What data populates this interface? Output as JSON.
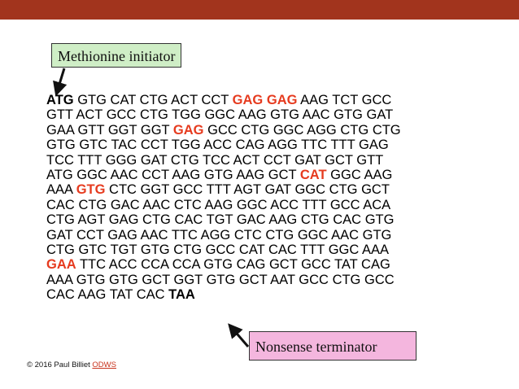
{
  "colors": {
    "header_bar": "#a2341d",
    "mutation": "#e63b1f",
    "start_callout": "#cfeec6",
    "stop_callout": "#f4b6de"
  },
  "callouts": {
    "start": "Methionine initiator",
    "stop": "Nonsense terminator"
  },
  "sequence": [
    [
      {
        "t": "ATG",
        "s": "bold"
      },
      {
        "t": "GTG"
      },
      {
        "t": "CAT"
      },
      {
        "t": "CTG"
      },
      {
        "t": "ACT"
      },
      {
        "t": "CCT"
      },
      {
        "t": "GAG",
        "s": "mut"
      },
      {
        "t": "GAG",
        "s": "mut"
      },
      {
        "t": "AAG"
      },
      {
        "t": "TCT"
      },
      {
        "t": "GCC"
      }
    ],
    [
      {
        "t": "GTT"
      },
      {
        "t": "ACT"
      },
      {
        "t": "GCC"
      },
      {
        "t": "CTG"
      },
      {
        "t": "TGG"
      },
      {
        "t": "GGC"
      },
      {
        "t": "AAG"
      },
      {
        "t": "GTG"
      },
      {
        "t": "AAC"
      },
      {
        "t": "GTG"
      },
      {
        "t": "GAT"
      }
    ],
    [
      {
        "t": "GAA"
      },
      {
        "t": "GTT"
      },
      {
        "t": "GGT"
      },
      {
        "t": "GGT"
      },
      {
        "t": "GAG",
        "s": "mut"
      },
      {
        "t": "GCC"
      },
      {
        "t": "CTG"
      },
      {
        "t": "GGC"
      },
      {
        "t": "AGG"
      },
      {
        "t": "CTG"
      },
      {
        "t": "CTG"
      }
    ],
    [
      {
        "t": "GTG"
      },
      {
        "t": "GTC"
      },
      {
        "t": "TAC"
      },
      {
        "t": "CCT"
      },
      {
        "t": "TGG"
      },
      {
        "t": "ACC"
      },
      {
        "t": "CAG"
      },
      {
        "t": "AGG"
      },
      {
        "t": "TTC"
      },
      {
        "t": "TTT"
      },
      {
        "t": "GAG"
      }
    ],
    [
      {
        "t": "TCC"
      },
      {
        "t": "TTT"
      },
      {
        "t": "GGG"
      },
      {
        "t": "GAT"
      },
      {
        "t": "CTG"
      },
      {
        "t": "TCC"
      },
      {
        "t": "ACT"
      },
      {
        "t": "CCT"
      },
      {
        "t": "GAT"
      },
      {
        "t": "GCT"
      },
      {
        "t": "GTT"
      }
    ],
    [
      {
        "t": "ATG"
      },
      {
        "t": "GGC"
      },
      {
        "t": "AAC"
      },
      {
        "t": "CCT"
      },
      {
        "t": "AAG"
      },
      {
        "t": "GTG"
      },
      {
        "t": "AAG"
      },
      {
        "t": "GCT"
      },
      {
        "t": "CAT",
        "s": "mut"
      },
      {
        "t": "GGC"
      },
      {
        "t": "AAG"
      }
    ],
    [
      {
        "t": "AAA"
      },
      {
        "t": "GTG",
        "s": "mut"
      },
      {
        "t": "CTC"
      },
      {
        "t": "GGT"
      },
      {
        "t": "GCC"
      },
      {
        "t": "TTT"
      },
      {
        "t": "AGT"
      },
      {
        "t": "GAT"
      },
      {
        "t": "GGC"
      },
      {
        "t": "CTG"
      },
      {
        "t": "GCT"
      }
    ],
    [
      {
        "t": "CAC"
      },
      {
        "t": "CTG"
      },
      {
        "t": "GAC"
      },
      {
        "t": "AAC"
      },
      {
        "t": "CTC"
      },
      {
        "t": "AAG"
      },
      {
        "t": "GGC"
      },
      {
        "t": "ACC"
      },
      {
        "t": "TTT"
      },
      {
        "t": "GCC"
      },
      {
        "t": "ACA"
      }
    ],
    [
      {
        "t": "CTG"
      },
      {
        "t": "AGT"
      },
      {
        "t": "GAG"
      },
      {
        "t": "CTG"
      },
      {
        "t": "CAC"
      },
      {
        "t": "TGT"
      },
      {
        "t": "GAC"
      },
      {
        "t": "AAG"
      },
      {
        "t": "CTG"
      },
      {
        "t": "CAC"
      },
      {
        "t": "GTG"
      }
    ],
    [
      {
        "t": "GAT"
      },
      {
        "t": "CCT"
      },
      {
        "t": "GAG"
      },
      {
        "t": "AAC"
      },
      {
        "t": "TTC"
      },
      {
        "t": "AGG"
      },
      {
        "t": "CTC"
      },
      {
        "t": "CTG"
      },
      {
        "t": "GGC"
      },
      {
        "t": "AAC"
      },
      {
        "t": "GTG"
      }
    ],
    [
      {
        "t": "CTG"
      },
      {
        "t": "GTC"
      },
      {
        "t": "TGT"
      },
      {
        "t": "GTG"
      },
      {
        "t": "CTG"
      },
      {
        "t": "GCC"
      },
      {
        "t": "CAT"
      },
      {
        "t": "CAC"
      },
      {
        "t": "TTT"
      },
      {
        "t": "GGC"
      },
      {
        "t": "AAA"
      }
    ],
    [
      {
        "t": "GAA",
        "s": "mut"
      },
      {
        "t": "TTC"
      },
      {
        "t": "ACC"
      },
      {
        "t": "CCA"
      },
      {
        "t": "CCA"
      },
      {
        "t": "GTG"
      },
      {
        "t": "CAG"
      },
      {
        "t": "GCT"
      },
      {
        "t": "GCC"
      },
      {
        "t": "TAT"
      },
      {
        "t": "CAG"
      }
    ],
    [
      {
        "t": "AAA"
      },
      {
        "t": "GTG"
      },
      {
        "t": "GTG"
      },
      {
        "t": "GCT"
      },
      {
        "t": "GGT"
      },
      {
        "t": "GTG"
      },
      {
        "t": "GCT"
      },
      {
        "t": "AAT"
      },
      {
        "t": "GCC"
      },
      {
        "t": "CTG"
      },
      {
        "t": "GCC"
      }
    ],
    [
      {
        "t": "CAC"
      },
      {
        "t": "AAG"
      },
      {
        "t": "TAT"
      },
      {
        "t": "CAC"
      },
      {
        "t": "TAA",
        "s": "bold"
      }
    ]
  ],
  "footer": {
    "copyright": "© 2016 Paul Billiet",
    "link": "ODWS"
  }
}
